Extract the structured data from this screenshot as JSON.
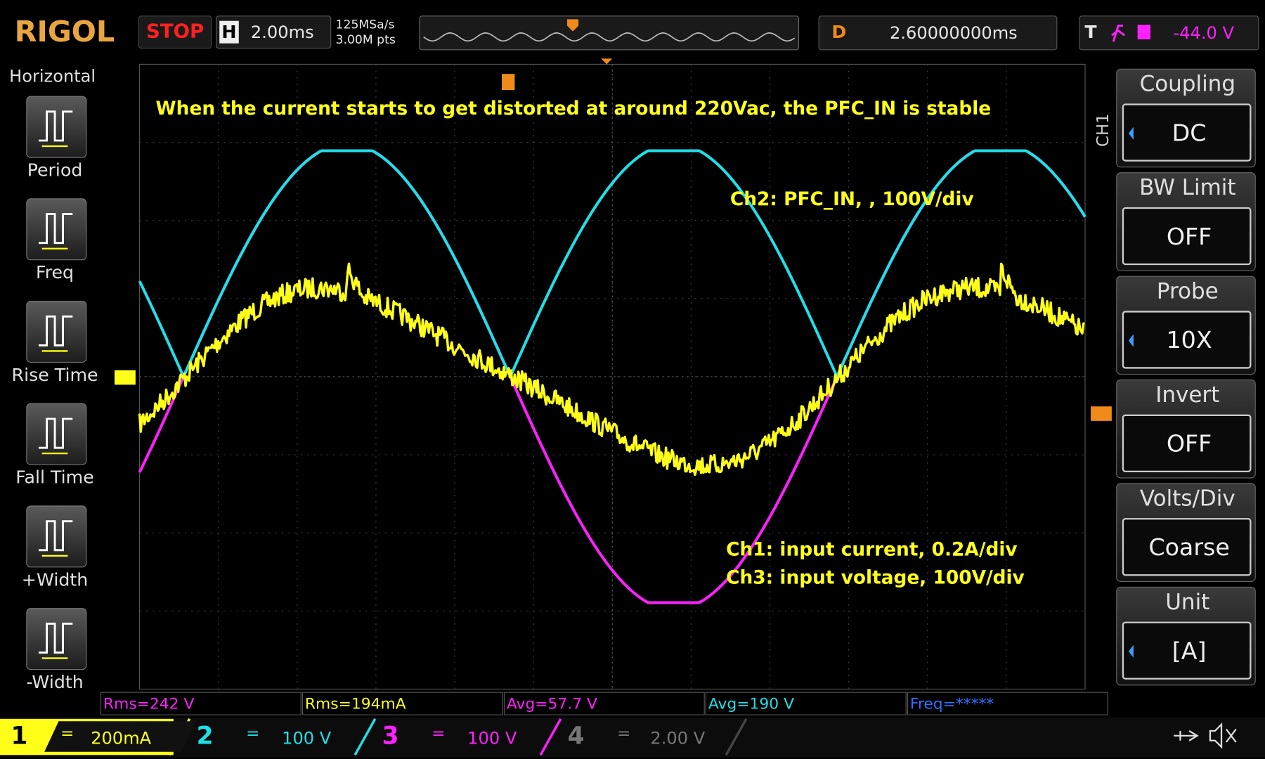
{
  "header": {
    "brand": "RIGOL",
    "status": "STOP",
    "timebase_label": "H",
    "timebase": "2.00ms",
    "sample_rate": "125MSa/s",
    "memory_depth": "3.00M pts",
    "delay_label": "D",
    "delay": "2.60000000ms",
    "trigger_label": "T",
    "trigger_level": "-44.0 V"
  },
  "left_menu": {
    "title": "Horizontal",
    "items": [
      "Period",
      "Freq",
      "Rise Time",
      "Fall Time",
      "+Width",
      "-Width"
    ]
  },
  "right_menu": {
    "channel": "CH1",
    "items": [
      {
        "label": "Coupling",
        "value": "DC"
      },
      {
        "label": "BW Limit",
        "value": "OFF"
      },
      {
        "label": "Probe",
        "value": "10X"
      },
      {
        "label": "Invert",
        "value": "OFF"
      },
      {
        "label": "Volts/Div",
        "value": "Coarse"
      },
      {
        "label": "Unit",
        "value": "[A]"
      }
    ]
  },
  "annotations": {
    "title": "When the current starts to get distorted at around 220Vac, the PFC_IN is stable",
    "ch2": "Ch2: PFC_IN, , 100V/div",
    "ch1": "Ch1: input current, 0.2A/div",
    "ch3": "Ch3: input voltage, 100V/div"
  },
  "measurements": [
    {
      "text": "Rms=242 V",
      "color": "#ff20ff"
    },
    {
      "text": "Rms=194mA",
      "color": "#ffff1a"
    },
    {
      "text": "Avg=57.7 V",
      "color": "#ff20ff"
    },
    {
      "text": "Avg=190 V",
      "color": "#1ee0e8"
    },
    {
      "text": "Freq=*****",
      "color": "#3070ff"
    }
  ],
  "channels": [
    {
      "number": "1",
      "coupling": "=",
      "scale": "200mA",
      "color": "#ffff1a",
      "active": true
    },
    {
      "number": "2",
      "coupling": "=",
      "scale": "100 V",
      "color": "#1ee0e8",
      "active": true
    },
    {
      "number": "3",
      "coupling": "=",
      "scale": "100 V",
      "color": "#ff20ff",
      "active": true
    },
    {
      "number": "4",
      "coupling": "=",
      "scale": "2.00 V",
      "color": "#777777",
      "active": false
    }
  ]
}
